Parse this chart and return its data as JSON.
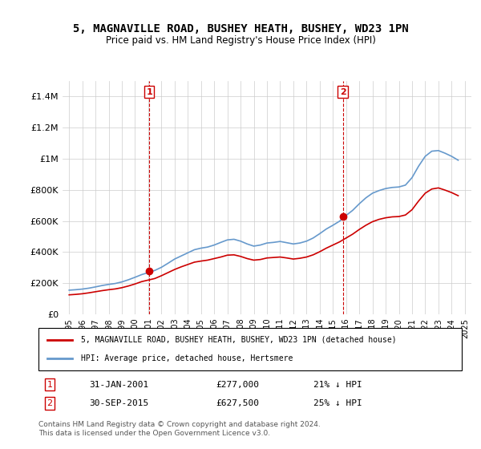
{
  "title": "5, MAGNAVILLE ROAD, BUSHEY HEATH, BUSHEY, WD23 1PN",
  "subtitle": "Price paid vs. HM Land Registry's House Price Index (HPI)",
  "legend_line1": "5, MAGNAVILLE ROAD, BUSHEY HEATH, BUSHEY, WD23 1PN (detached house)",
  "legend_line2": "HPI: Average price, detached house, Hertsmere",
  "annotation1_label": "1",
  "annotation1_date": "31-JAN-2001",
  "annotation1_price": "£277,000",
  "annotation1_hpi": "21% ↓ HPI",
  "annotation2_label": "2",
  "annotation2_date": "30-SEP-2015",
  "annotation2_price": "£627,500",
  "annotation2_hpi": "25% ↓ HPI",
  "footnote1": "Contains HM Land Registry data © Crown copyright and database right 2024.",
  "footnote2": "This data is licensed under the Open Government Licence v3.0.",
  "price_color": "#cc0000",
  "hpi_color": "#6699cc",
  "annotation_color": "#cc0000",
  "ylim": [
    0,
    1500000
  ],
  "yticks": [
    0,
    200000,
    400000,
    600000,
    800000,
    1000000,
    1200000,
    1400000
  ],
  "ytick_labels": [
    "£0",
    "£200K",
    "£400K",
    "£600K",
    "£800K",
    "£1M",
    "£1.2M",
    "£1.4M"
  ],
  "sale1_x": 2001.08,
  "sale1_y": 277000,
  "sale2_x": 2015.75,
  "sale2_y": 627500,
  "vline1_x": 2001.08,
  "vline2_x": 2015.75,
  "hpi_years": [
    1995,
    1995.5,
    1996,
    1996.5,
    1997,
    1997.5,
    1998,
    1998.5,
    1999,
    1999.5,
    2000,
    2000.5,
    2001,
    2001.5,
    2002,
    2002.5,
    2003,
    2003.5,
    2004,
    2004.5,
    2005,
    2005.5,
    2006,
    2006.5,
    2007,
    2007.5,
    2008,
    2008.5,
    2009,
    2009.5,
    2010,
    2010.5,
    2011,
    2011.5,
    2012,
    2012.5,
    2013,
    2013.5,
    2014,
    2014.5,
    2015,
    2015.5,
    2016,
    2016.5,
    2017,
    2017.5,
    2018,
    2018.5,
    2019,
    2019.5,
    2020,
    2020.5,
    2021,
    2021.5,
    2022,
    2022.5,
    2023,
    2023.5,
    2024,
    2024.5
  ],
  "hpi_values": [
    155000,
    158000,
    162000,
    168000,
    176000,
    185000,
    192000,
    198000,
    208000,
    222000,
    238000,
    255000,
    268000,
    282000,
    302000,
    328000,
    355000,
    375000,
    395000,
    415000,
    425000,
    432000,
    445000,
    462000,
    478000,
    482000,
    470000,
    452000,
    438000,
    445000,
    458000,
    462000,
    468000,
    460000,
    452000,
    458000,
    470000,
    490000,
    518000,
    548000,
    572000,
    598000,
    635000,
    668000,
    710000,
    748000,
    778000,
    795000,
    808000,
    815000,
    818000,
    830000,
    878000,
    952000,
    1015000,
    1048000,
    1052000,
    1035000,
    1015000,
    990000
  ],
  "price_years": [
    1995,
    1995.5,
    1996,
    1996.5,
    1997,
    1997.5,
    1998,
    1998.5,
    1999,
    1999.5,
    2000,
    2000.5,
    2001,
    2001.5,
    2002,
    2002.5,
    2003,
    2003.5,
    2004,
    2004.5,
    2005,
    2005.5,
    2006,
    2006.5,
    2007,
    2007.5,
    2008,
    2008.5,
    2009,
    2009.5,
    2010,
    2010.5,
    2011,
    2011.5,
    2012,
    2012.5,
    2013,
    2013.5,
    2014,
    2014.5,
    2015,
    2015.5,
    2016,
    2016.5,
    2017,
    2017.5,
    2018,
    2018.5,
    2019,
    2019.5,
    2020,
    2020.5,
    2021,
    2021.5,
    2022,
    2022.5,
    2023,
    2023.5,
    2024,
    2024.5
  ],
  "price_values": [
    125000,
    128000,
    132000,
    138000,
    145000,
    152000,
    158000,
    163000,
    171000,
    182000,
    195000,
    210000,
    220000,
    230000,
    248000,
    268000,
    288000,
    305000,
    320000,
    335000,
    342000,
    348000,
    358000,
    368000,
    380000,
    382000,
    372000,
    358000,
    348000,
    352000,
    362000,
    365000,
    368000,
    362000,
    355000,
    360000,
    368000,
    382000,
    402000,
    425000,
    445000,
    465000,
    490000,
    515000,
    545000,
    572000,
    595000,
    610000,
    620000,
    626000,
    628000,
    638000,
    672000,
    728000,
    778000,
    805000,
    812000,
    798000,
    782000,
    762000
  ],
  "xlim_left": 1994.5,
  "xlim_right": 2025.5,
  "xtick_years": [
    1995,
    1996,
    1997,
    1998,
    1999,
    2000,
    2001,
    2002,
    2003,
    2004,
    2005,
    2006,
    2007,
    2008,
    2009,
    2010,
    2011,
    2012,
    2013,
    2014,
    2015,
    2016,
    2017,
    2018,
    2019,
    2020,
    2021,
    2022,
    2023,
    2024,
    2025
  ]
}
